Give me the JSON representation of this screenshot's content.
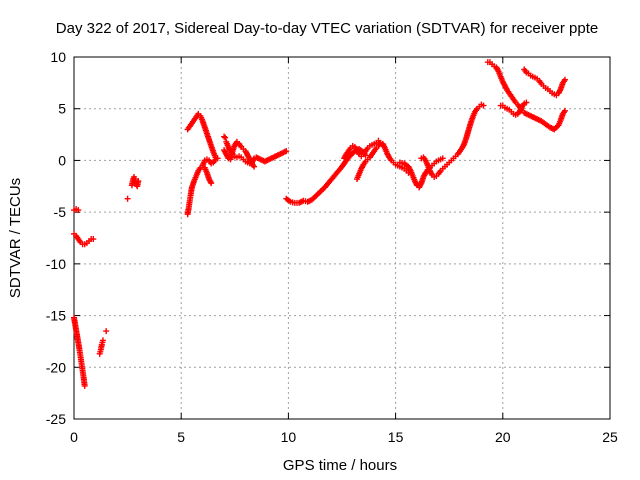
{
  "chart_data": {
    "type": "scatter",
    "title": "Day 322 of 2017, Sidereal Day-to-day VTEC variation (SDTVAR) for receiver ppte",
    "xlabel": "GPS time / hours",
    "ylabel": "SDTVAR / TECUs",
    "xlim": [
      0,
      25
    ],
    "ylim": [
      -25,
      10
    ],
    "xticks": [
      0,
      5,
      10,
      15,
      20,
      25
    ],
    "yticks": [
      -25,
      -20,
      -15,
      -10,
      -5,
      0,
      5,
      10
    ],
    "grid": true,
    "marker": "plus",
    "color": "#ff0000",
    "segments": [
      [
        [
          0.0,
          -4.8
        ],
        [
          0.1,
          -4.7
        ],
        [
          0.2,
          -4.8
        ]
      ],
      [
        [
          0.0,
          -7.1
        ],
        [
          0.1,
          -7.3
        ],
        [
          0.2,
          -7.6
        ],
        [
          0.3,
          -7.9
        ],
        [
          0.4,
          -8.1
        ],
        [
          0.5,
          -8.1
        ],
        [
          0.6,
          -8.0
        ],
        [
          0.7,
          -7.8
        ],
        [
          0.8,
          -7.6
        ],
        [
          0.9,
          -7.6
        ]
      ],
      [
        [
          0.0,
          -15.2
        ],
        [
          0.05,
          -15.8
        ],
        [
          0.1,
          -16.4
        ],
        [
          0.15,
          -17.0
        ],
        [
          0.2,
          -17.6
        ],
        [
          0.25,
          -18.2
        ],
        [
          0.3,
          -18.9
        ],
        [
          0.35,
          -19.6
        ],
        [
          0.4,
          -20.3
        ],
        [
          0.45,
          -21.0
        ],
        [
          0.5,
          -21.8
        ]
      ],
      [
        [
          1.2,
          -18.7
        ],
        [
          1.25,
          -18.3
        ],
        [
          1.3,
          -17.8
        ],
        [
          1.35,
          -17.4
        ]
      ],
      [
        [
          1.5,
          -16.5
        ]
      ],
      [
        [
          2.5,
          -3.7
        ]
      ],
      [
        [
          2.7,
          -2.4
        ],
        [
          2.75,
          -1.9
        ],
        [
          2.8,
          -1.6
        ],
        [
          2.85,
          -1.8
        ],
        [
          2.9,
          -2.2
        ],
        [
          2.95,
          -2.5
        ],
        [
          3.0,
          -2.0
        ]
      ],
      [
        [
          5.3,
          -5.2
        ],
        [
          5.35,
          -4.6
        ],
        [
          5.4,
          -3.9
        ],
        [
          5.45,
          -3.2
        ],
        [
          5.5,
          -2.6
        ],
        [
          5.6,
          -2.0
        ],
        [
          5.7,
          -1.5
        ],
        [
          5.8,
          -1.0
        ],
        [
          5.9,
          -0.7
        ],
        [
          6.0,
          -0.5
        ],
        [
          6.1,
          -0.7
        ],
        [
          6.2,
          -1.2
        ],
        [
          6.3,
          -1.8
        ],
        [
          6.4,
          -2.2
        ]
      ],
      [
        [
          5.3,
          3.0
        ],
        [
          5.4,
          3.3
        ],
        [
          5.5,
          3.6
        ],
        [
          5.6,
          3.9
        ],
        [
          5.7,
          4.2
        ],
        [
          5.8,
          4.5
        ],
        [
          5.9,
          4.3
        ],
        [
          6.0,
          3.8
        ],
        [
          6.1,
          3.2
        ],
        [
          6.2,
          2.6
        ],
        [
          6.3,
          2.0
        ],
        [
          6.4,
          1.4
        ],
        [
          6.5,
          0.8
        ],
        [
          6.6,
          0.3
        ],
        [
          6.7,
          0.2
        ]
      ],
      [
        [
          6.0,
          -0.5
        ],
        [
          6.1,
          0.0
        ],
        [
          6.2,
          0.1
        ],
        [
          6.3,
          0.0
        ],
        [
          6.4,
          -0.3
        ],
        [
          6.5,
          -0.2
        ],
        [
          6.6,
          0.1
        ]
      ],
      [
        [
          7.0,
          2.3
        ],
        [
          7.05,
          2.2
        ]
      ],
      [
        [
          7.1,
          1.8
        ],
        [
          7.2,
          1.3
        ],
        [
          7.3,
          0.9
        ],
        [
          7.4,
          0.6
        ],
        [
          7.5,
          0.4
        ],
        [
          7.6,
          0.3
        ],
        [
          7.7,
          0.4
        ],
        [
          7.8,
          0.3
        ],
        [
          7.9,
          0.1
        ],
        [
          8.0,
          -0.1
        ],
        [
          8.1,
          -0.2
        ],
        [
          8.2,
          -0.3
        ],
        [
          8.3,
          -0.2
        ],
        [
          8.4,
          0.2
        ]
      ],
      [
        [
          7.0,
          1.0
        ],
        [
          7.1,
          0.6
        ],
        [
          7.2,
          0.2
        ],
        [
          7.3,
          0.1
        ],
        [
          7.4,
          0.9
        ],
        [
          7.5,
          1.5
        ],
        [
          7.6,
          1.8
        ],
        [
          7.7,
          1.6
        ],
        [
          7.8,
          1.3
        ],
        [
          7.9,
          1.1
        ],
        [
          8.0,
          0.9
        ],
        [
          8.1,
          0.5
        ],
        [
          8.2,
          0.1
        ],
        [
          8.3,
          -0.3
        ],
        [
          8.4,
          -0.6
        ]
      ],
      [
        [
          8.5,
          0.3
        ],
        [
          8.7,
          0.1
        ],
        [
          8.9,
          -0.1
        ],
        [
          9.1,
          0.1
        ],
        [
          9.3,
          0.3
        ],
        [
          9.5,
          0.5
        ],
        [
          9.7,
          0.7
        ],
        [
          9.9,
          0.9
        ]
      ],
      [
        [
          9.9,
          -3.7
        ],
        [
          10.1,
          -4.0
        ],
        [
          10.3,
          -4.1
        ],
        [
          10.5,
          -4.1
        ],
        [
          10.7,
          -3.9
        ],
        [
          10.9,
          -4.0
        ],
        [
          11.1,
          -3.8
        ],
        [
          11.3,
          -3.4
        ],
        [
          11.5,
          -3.0
        ],
        [
          11.7,
          -2.6
        ],
        [
          11.9,
          -2.1
        ],
        [
          12.1,
          -1.6
        ],
        [
          12.3,
          -1.1
        ],
        [
          12.5,
          -0.6
        ],
        [
          12.7,
          0.0
        ],
        [
          12.9,
          0.5
        ],
        [
          13.1,
          0.9
        ],
        [
          13.3,
          1.1
        ],
        [
          13.5,
          0.8
        ],
        [
          13.6,
          0.5
        ]
      ],
      [
        [
          12.6,
          0.2
        ],
        [
          12.7,
          0.6
        ],
        [
          12.8,
          0.9
        ],
        [
          12.9,
          1.2
        ],
        [
          13.0,
          1.4
        ],
        [
          13.1,
          1.3
        ],
        [
          13.2,
          1.0
        ],
        [
          13.3,
          0.6
        ],
        [
          13.4,
          0.4
        ],
        [
          13.5,
          0.6
        ],
        [
          13.6,
          0.9
        ],
        [
          13.7,
          1.2
        ],
        [
          13.8,
          1.4
        ],
        [
          13.9,
          1.5
        ],
        [
          14.0,
          1.6
        ],
        [
          14.1,
          1.7
        ],
        [
          14.2,
          1.9
        ]
      ],
      [
        [
          13.2,
          -1.8
        ],
        [
          13.3,
          -1.3
        ],
        [
          13.4,
          -0.8
        ],
        [
          13.5,
          -0.4
        ],
        [
          13.6,
          -0.1
        ],
        [
          13.7,
          0.1
        ],
        [
          13.8,
          0.3
        ],
        [
          13.9,
          0.6
        ],
        [
          14.0,
          0.9
        ],
        [
          14.1,
          1.2
        ],
        [
          14.2,
          1.4
        ],
        [
          14.3,
          1.7
        ],
        [
          14.4,
          1.6
        ],
        [
          14.5,
          1.2
        ],
        [
          14.6,
          0.7
        ],
        [
          14.7,
          0.3
        ],
        [
          14.8,
          0.0
        ],
        [
          14.9,
          -0.2
        ],
        [
          15.0,
          -0.4
        ],
        [
          15.1,
          -0.5
        ],
        [
          15.2,
          -0.6
        ],
        [
          15.3,
          -0.7
        ],
        [
          15.4,
          -0.8
        ],
        [
          15.5,
          -1.0
        ],
        [
          15.6,
          -1.2
        ]
      ],
      [
        [
          15.2,
          -0.2
        ],
        [
          15.4,
          -0.3
        ],
        [
          15.6,
          -0.6
        ],
        [
          15.7,
          -1.0
        ],
        [
          15.8,
          -1.5
        ],
        [
          15.9,
          -2.0
        ],
        [
          16.0,
          -2.4
        ],
        [
          16.1,
          -2.6
        ],
        [
          16.2,
          -2.2
        ],
        [
          16.3,
          -1.6
        ],
        [
          16.4,
          -1.2
        ],
        [
          16.5,
          -0.9
        ],
        [
          16.6,
          -0.7
        ],
        [
          16.7,
          -0.5
        ],
        [
          16.8,
          -0.3
        ],
        [
          16.9,
          -0.1
        ],
        [
          17.0,
          0.0
        ],
        [
          17.1,
          0.1
        ],
        [
          17.2,
          0.2
        ]
      ],
      [
        [
          16.2,
          0.2
        ],
        [
          16.3,
          0.3
        ],
        [
          16.4,
          0.0
        ],
        [
          16.5,
          -0.5
        ],
        [
          16.6,
          -1.0
        ],
        [
          16.7,
          -1.4
        ],
        [
          16.8,
          -1.6
        ],
        [
          16.9,
          -1.5
        ],
        [
          17.0,
          -1.3
        ],
        [
          17.1,
          -1.0
        ],
        [
          17.2,
          -0.8
        ],
        [
          17.3,
          -0.6
        ],
        [
          17.4,
          -0.4
        ],
        [
          17.5,
          -0.2
        ],
        [
          17.6,
          0.0
        ],
        [
          17.7,
          0.2
        ],
        [
          17.8,
          0.4
        ],
        [
          17.9,
          0.6
        ],
        [
          18.0,
          0.9
        ],
        [
          18.1,
          1.2
        ],
        [
          18.2,
          1.6
        ],
        [
          18.3,
          2.2
        ],
        [
          18.4,
          2.9
        ],
        [
          18.5,
          3.6
        ],
        [
          18.6,
          4.2
        ],
        [
          18.7,
          4.7
        ],
        [
          18.8,
          5.0
        ],
        [
          18.9,
          5.2
        ],
        [
          19.0,
          5.4
        ],
        [
          19.1,
          5.3
        ]
      ],
      [
        [
          19.3,
          9.5
        ],
        [
          19.4,
          9.5
        ],
        [
          19.5,
          9.3
        ],
        [
          19.6,
          9.1
        ],
        [
          19.7,
          9.0
        ],
        [
          19.8,
          8.6
        ],
        [
          19.9,
          8.1
        ],
        [
          20.0,
          7.6
        ],
        [
          20.1,
          7.2
        ],
        [
          20.2,
          6.8
        ],
        [
          20.3,
          6.5
        ],
        [
          20.4,
          6.2
        ],
        [
          20.5,
          5.9
        ],
        [
          20.6,
          5.6
        ],
        [
          20.7,
          5.4
        ],
        [
          20.8,
          5.1
        ],
        [
          20.9,
          4.8
        ],
        [
          21.0,
          4.6
        ],
        [
          21.2,
          4.4
        ],
        [
          21.4,
          4.2
        ],
        [
          21.6,
          4.0
        ],
        [
          21.8,
          3.8
        ],
        [
          22.0,
          3.5
        ],
        [
          22.2,
          3.2
        ],
        [
          22.4,
          3.0
        ],
        [
          22.6,
          3.4
        ],
        [
          22.7,
          3.9
        ],
        [
          22.8,
          4.5
        ],
        [
          22.9,
          4.8
        ]
      ],
      [
        [
          19.9,
          5.3
        ],
        [
          20.0,
          5.3
        ],
        [
          20.1,
          5.1
        ],
        [
          20.2,
          5.0
        ],
        [
          20.3,
          4.9
        ],
        [
          20.4,
          4.7
        ],
        [
          20.5,
          4.5
        ],
        [
          20.6,
          4.4
        ],
        [
          20.7,
          4.5
        ],
        [
          20.8,
          4.8
        ],
        [
          20.9,
          5.2
        ],
        [
          21.0,
          5.5
        ],
        [
          21.1,
          5.6
        ]
      ],
      [
        [
          21.0,
          8.8
        ],
        [
          21.1,
          8.5
        ],
        [
          21.2,
          8.4
        ],
        [
          21.3,
          8.2
        ],
        [
          21.4,
          8.1
        ],
        [
          21.5,
          8.0
        ],
        [
          21.6,
          7.9
        ],
        [
          21.7,
          7.7
        ],
        [
          21.8,
          7.4
        ],
        [
          21.9,
          7.2
        ],
        [
          22.0,
          7.0
        ],
        [
          22.1,
          6.9
        ],
        [
          22.2,
          6.7
        ],
        [
          22.3,
          6.5
        ],
        [
          22.4,
          6.4
        ],
        [
          22.5,
          6.3
        ],
        [
          22.6,
          6.5
        ],
        [
          22.7,
          6.9
        ],
        [
          22.8,
          7.5
        ],
        [
          22.9,
          7.8
        ]
      ]
    ]
  }
}
